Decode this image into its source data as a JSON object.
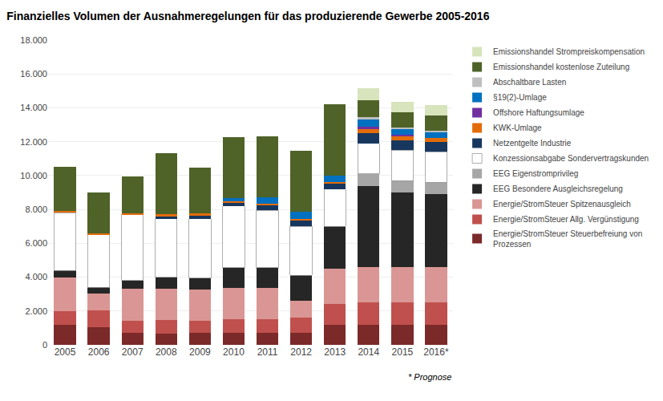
{
  "chart_data": {
    "type": "bar",
    "title": "Finanzielles Volumen der Ausnahmeregelungen für das produzierende Gewerbe 2005-2016",
    "categories": [
      "2005",
      "2006",
      "2007",
      "2008",
      "2009",
      "2010",
      "2011",
      "2012",
      "2013",
      "2014",
      "2015",
      "2016*"
    ],
    "series": [
      {
        "name": "Energie/StromSteuer Steuerbefreiung von\nProzessen",
        "color": "#7b2929",
        "values": [
          1200,
          1050,
          700,
          650,
          700,
          700,
          700,
          700,
          1200,
          1200,
          1200,
          1200
        ]
      },
      {
        "name": "Energie/StromSteuer Allg. Vergünstigung",
        "color": "#c0504d",
        "values": [
          800,
          1000,
          700,
          800,
          700,
          800,
          800,
          900,
          1200,
          1300,
          1300,
          1300
        ]
      },
      {
        "name": "Energie/StromSteuer Spitzenausgleich",
        "color": "#da9694",
        "values": [
          2000,
          1000,
          1900,
          1850,
          1850,
          1850,
          1850,
          1000,
          2100,
          2100,
          2100,
          2100
        ]
      },
      {
        "name": "EEG Besondere Ausgleichsregelung",
        "color": "#262626",
        "values": [
          400,
          350,
          500,
          700,
          700,
          1200,
          1200,
          1500,
          2500,
          4800,
          4400,
          4300
        ]
      },
      {
        "name": "EEG Eigenstromprivileg",
        "color": "#a6a6a6",
        "values": [
          0,
          0,
          0,
          0,
          0,
          0,
          0,
          0,
          0,
          700,
          700,
          700
        ]
      },
      {
        "name": "Konzessionsabgabe Sondervertragskunden",
        "color": "#ffffff",
        "values": [
          3400,
          3100,
          3900,
          3450,
          3500,
          3650,
          3400,
          2900,
          2200,
          1800,
          1800,
          1800
        ]
      },
      {
        "name": "Netzentgelte Industrie",
        "color": "#17375e",
        "values": [
          0,
          0,
          0,
          150,
          200,
          200,
          300,
          350,
          300,
          600,
          600,
          600
        ]
      },
      {
        "name": "KWK-Umlage",
        "color": "#e36c09",
        "values": [
          100,
          100,
          50,
          100,
          100,
          100,
          100,
          100,
          100,
          250,
          200,
          200
        ]
      },
      {
        "name": "Offshore Haftungsumlage",
        "color": "#7030a0",
        "values": [
          0,
          0,
          0,
          0,
          0,
          0,
          0,
          0,
          0,
          150,
          100,
          0
        ]
      },
      {
        "name": "§19(2)-Umlage",
        "color": "#0070c0",
        "values": [
          0,
          0,
          0,
          0,
          0,
          150,
          350,
          400,
          400,
          400,
          350,
          350
        ]
      },
      {
        "name": "Abschaltbare Lasten",
        "color": "#bfbfbf",
        "values": [
          0,
          0,
          0,
          0,
          0,
          0,
          0,
          0,
          0,
          150,
          100,
          100
        ]
      },
      {
        "name": "Emissionshandel kostenlose Zuteilung",
        "color": "#4f6228",
        "values": [
          2600,
          2400,
          2200,
          3600,
          2700,
          3600,
          3600,
          3600,
          4200,
          1000,
          900,
          900
        ]
      },
      {
        "name": "Emissionshandel Strompreiskompensation",
        "color": "#d7e4bc",
        "values": [
          0,
          0,
          0,
          0,
          0,
          0,
          0,
          0,
          0,
          700,
          600,
          600
        ]
      }
    ],
    "ylim": [
      0,
      18000
    ],
    "yticks": [
      0,
      {
        "value": 2000,
        "label": "2.000"
      },
      {
        "value": 4000,
        "label": "4.000"
      },
      {
        "value": 6000,
        "label": "6.000"
      },
      {
        "value": 8000,
        "label": "8.000"
      },
      {
        "value": 10000,
        "label": "10.000"
      },
      {
        "value": 12000,
        "label": "12.000"
      },
      {
        "value": 14000,
        "label": "14.000"
      },
      {
        "value": 16000,
        "label": "16.000"
      },
      {
        "value": 18000,
        "label": "18.000"
      }
    ],
    "grid": true,
    "stacked": true,
    "legend": "right",
    "annotations": [
      "* Prognose"
    ]
  }
}
